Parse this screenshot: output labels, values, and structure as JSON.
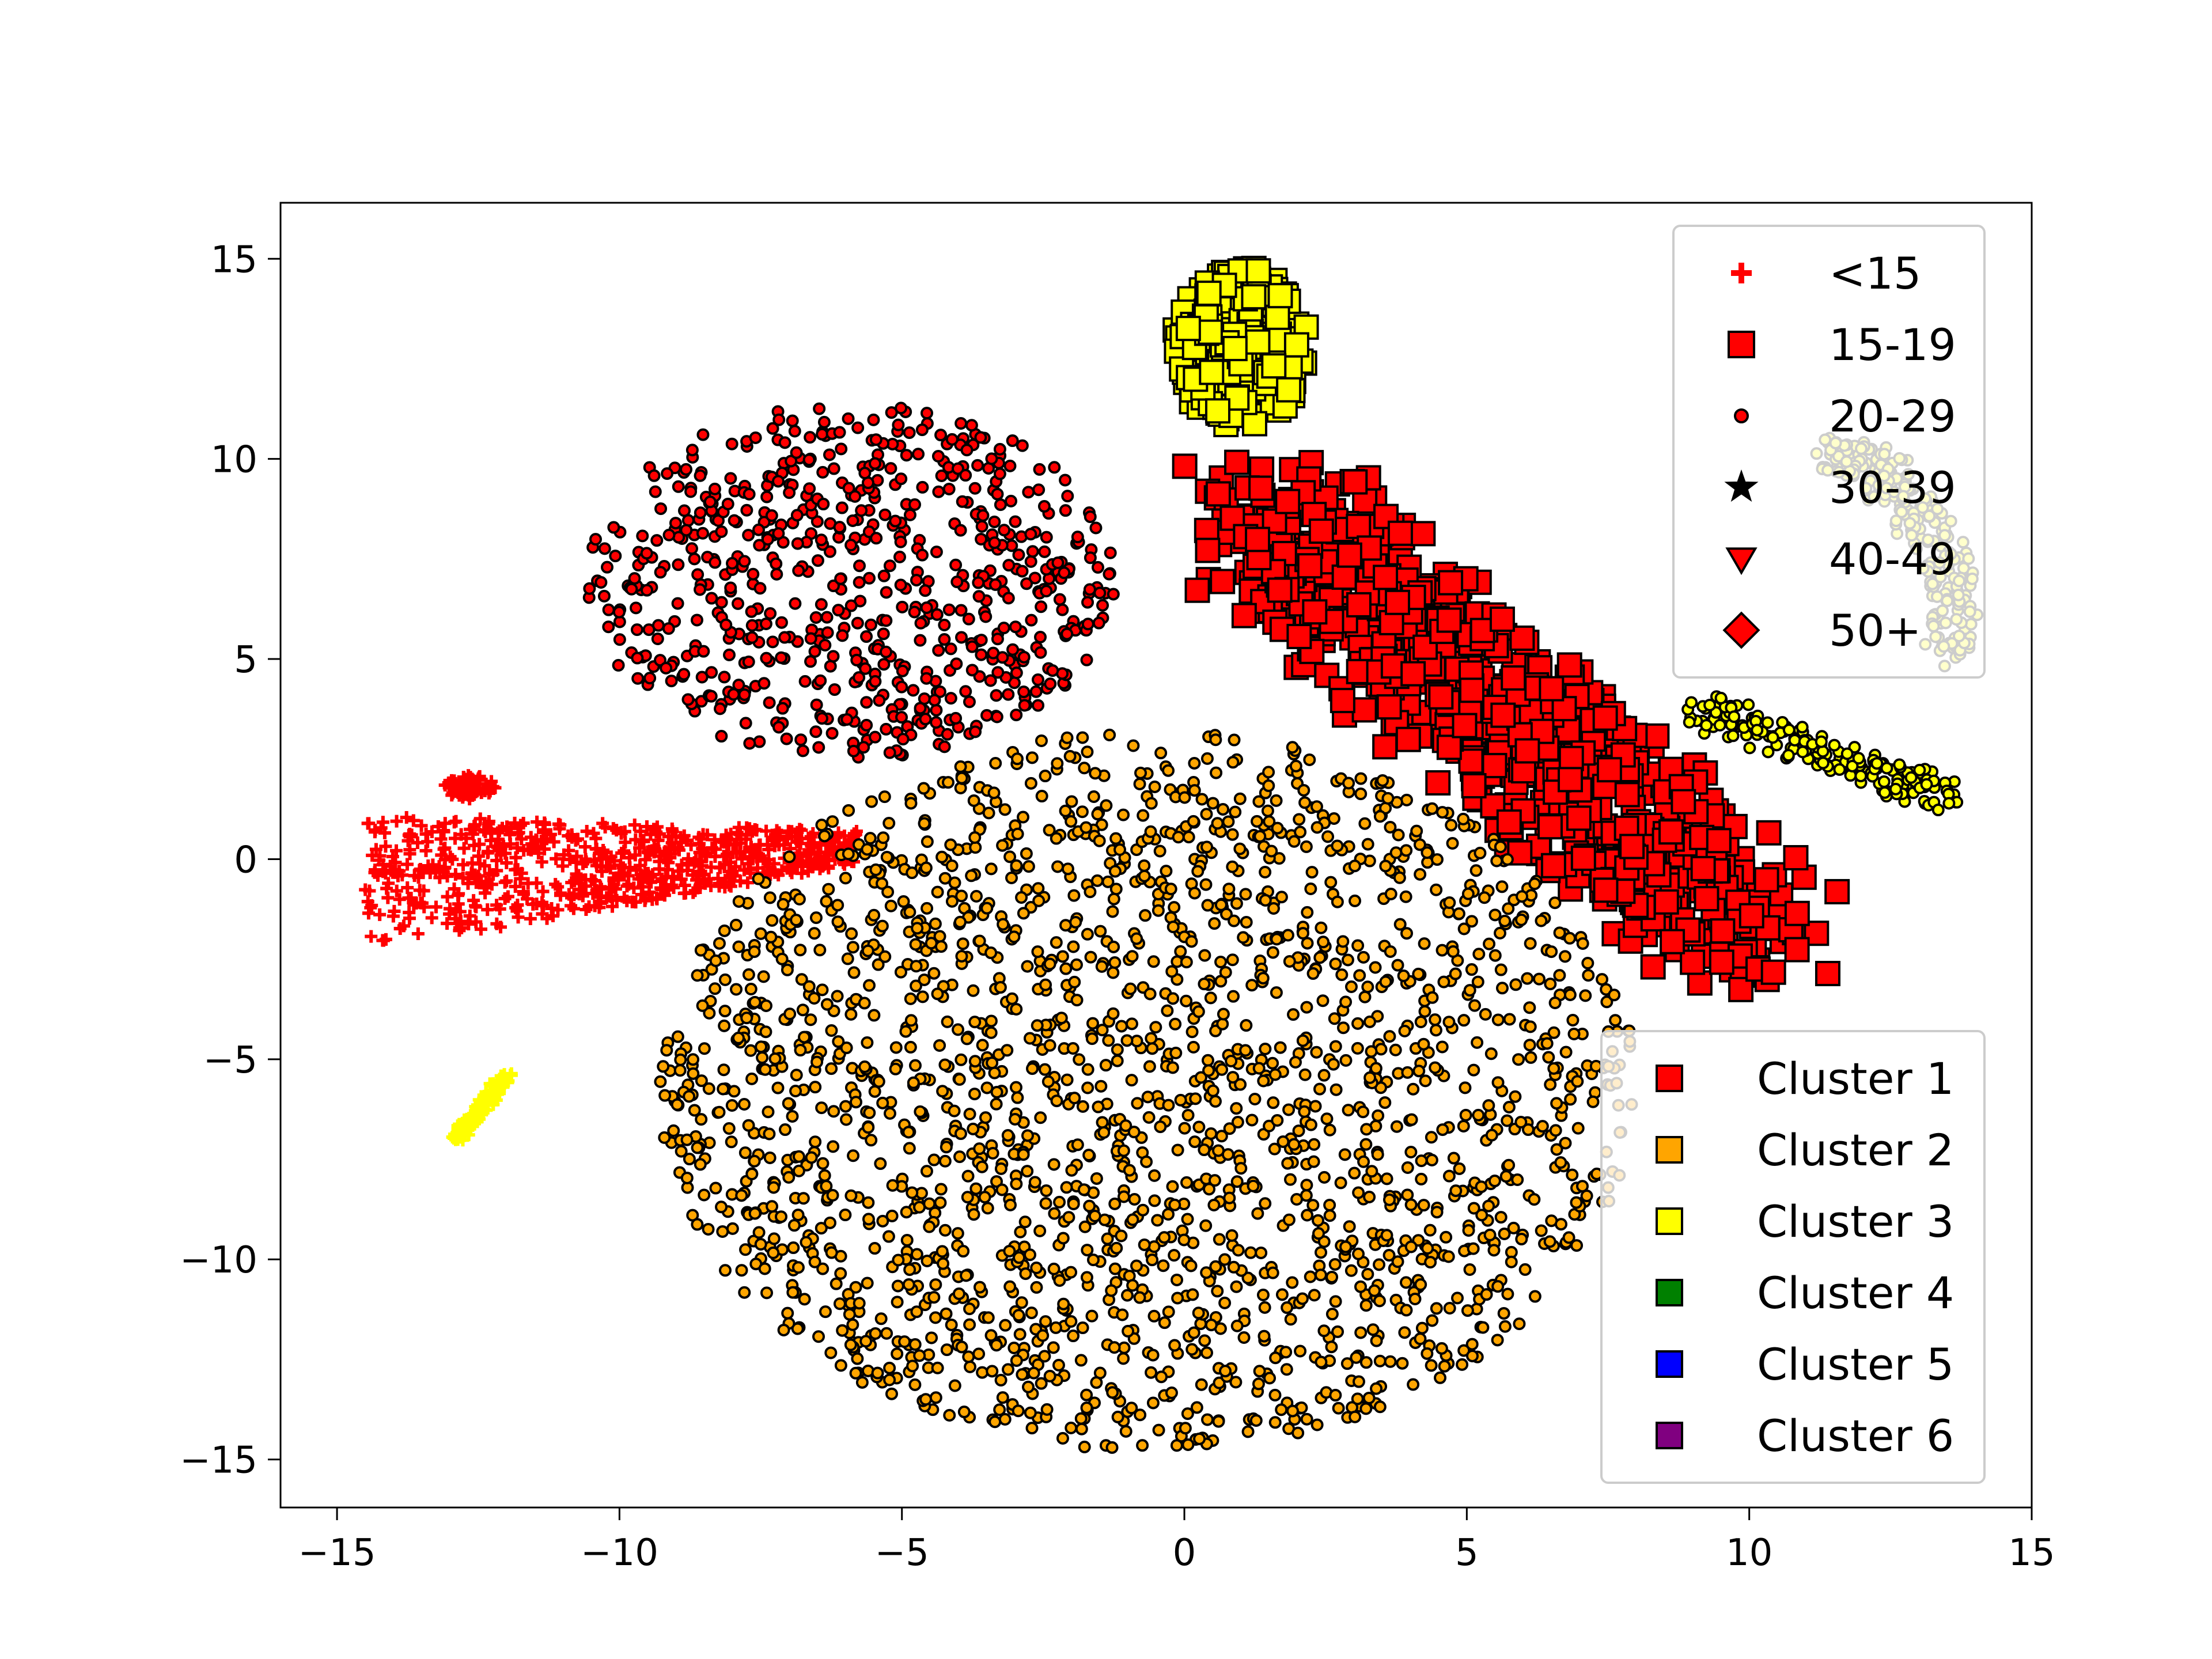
{
  "chart_data": {
    "type": "scatter",
    "title": "",
    "xlabel": "",
    "ylabel": "",
    "xlim": [
      -16,
      15
    ],
    "ylim": [
      -16.2,
      16.4
    ],
    "xticks": [
      -15,
      -10,
      -5,
      0,
      5,
      10,
      15
    ],
    "yticks": [
      -15,
      -10,
      -5,
      0,
      5,
      10,
      15
    ],
    "xtick_labels": [
      "−15",
      "−10",
      "−5",
      "0",
      "5",
      "10",
      "15"
    ],
    "ytick_labels": [
      "−15",
      "−10",
      "−5",
      "0",
      "5",
      "10",
      "15"
    ],
    "grid": false,
    "marker_legend": {
      "placement": "upper-right",
      "entries": [
        {
          "label": "<15",
          "marker": "plus"
        },
        {
          "label": "15-19",
          "marker": "square"
        },
        {
          "label": "20-29",
          "marker": "circle"
        },
        {
          "label": "30-39",
          "marker": "star"
        },
        {
          "label": "40-49",
          "marker": "triangle-down"
        },
        {
          "label": "50+",
          "marker": "diamond"
        }
      ]
    },
    "cluster_legend": {
      "placement": "lower-right",
      "entries": [
        {
          "label": "Cluster 1",
          "color": "#ff0000"
        },
        {
          "label": "Cluster 2",
          "color": "#ffa500"
        },
        {
          "label": "Cluster 3",
          "color": "#ffff00"
        },
        {
          "label": "Cluster 4",
          "color": "#008000"
        },
        {
          "label": "Cluster 5",
          "color": "#0000ff"
        },
        {
          "label": "Cluster 6",
          "color": "#800080"
        }
      ]
    },
    "groups": [
      {
        "age_group": "<15",
        "cluster": "Cluster 1",
        "marker": "plus",
        "color": "#ff0000",
        "approx_center": [
          -10.5,
          -0.5
        ],
        "approx_extent_x": [
          -14.5,
          -5.8
        ],
        "approx_extent_y": [
          -2.4,
          1.2
        ]
      },
      {
        "age_group": "<15",
        "cluster": "Cluster 1",
        "marker": "plus",
        "color": "#ff0000",
        "approx_center": [
          -12.7,
          1.8
        ],
        "approx_extent_x": [
          -13.1,
          -12.2
        ],
        "approx_extent_y": [
          1.5,
          2.1
        ]
      },
      {
        "age_group": "<15",
        "cluster": "Cluster 3",
        "marker": "plus",
        "color": "#ffff00",
        "approx_center": [
          -12.5,
          -6.2
        ],
        "approx_extent_x": [
          -12.9,
          -12.0
        ],
        "approx_extent_y": [
          -7.0,
          -5.4
        ]
      },
      {
        "age_group": "15-19",
        "cluster": "Cluster 3",
        "marker": "square",
        "color": "#ffff00",
        "approx_center": [
          1.0,
          12.5
        ],
        "approx_extent_x": [
          -0.2,
          2.2
        ],
        "approx_extent_y": [
          10.8,
          14.8
        ]
      },
      {
        "age_group": "15-19",
        "cluster": "Cluster 1",
        "marker": "square",
        "color": "#ff0000",
        "approx_center": [
          5.5,
          3.5
        ],
        "approx_extent_x": [
          0.5,
          11.0
        ],
        "approx_extent_y": [
          -3.2,
          9.9
        ]
      },
      {
        "age_group": "20-29",
        "cluster": "Cluster 1",
        "marker": "circle",
        "color": "#ff0000",
        "approx_center": [
          -6.5,
          7.0
        ],
        "approx_extent_x": [
          -10.6,
          -1.2
        ],
        "approx_extent_y": [
          2.5,
          11.4
        ]
      },
      {
        "age_group": "20-29",
        "cluster": "Cluster 3",
        "marker": "circle",
        "color": "#ffff00",
        "approx_center": [
          11.2,
          5.5
        ],
        "approx_extent_x": [
          8.2,
          13.7
        ],
        "approx_extent_y": [
          1.4,
          10.0
        ]
      },
      {
        "age_group": "20-29",
        "cluster": "Cluster 2",
        "marker": "circle",
        "color": "#ffa500",
        "approx_center": [
          -0.5,
          -6.0
        ],
        "approx_extent_x": [
          -9.3,
          8.0
        ],
        "approx_extent_y": [
          -14.8,
          3.2
        ]
      }
    ]
  }
}
